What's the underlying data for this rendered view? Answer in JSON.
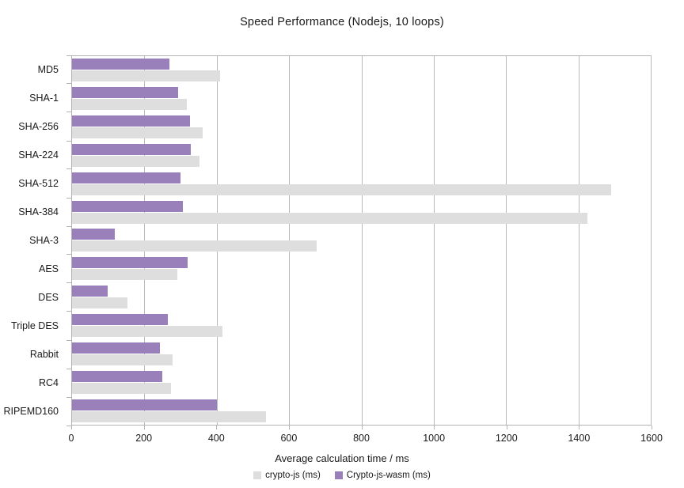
{
  "chart_data": {
    "type": "bar",
    "orientation": "horizontal",
    "title": "Speed Performance (Nodejs, 10 loops)",
    "xlabel": "Average calculation time / ms",
    "xlim": [
      0,
      1600
    ],
    "xticks": [
      0,
      200,
      400,
      600,
      800,
      1000,
      1200,
      1400,
      1600
    ],
    "grid": true,
    "legend_position": "bottom",
    "categories": [
      "MD5",
      "SHA-1",
      "SHA-256",
      "SHA-224",
      "SHA-512",
      "SHA-384",
      "SHA-3",
      "AES",
      "DES",
      "Triple DES",
      "Rabbit",
      "RC4",
      "RIPEMD160"
    ],
    "series": [
      {
        "name": "crypto-js (ms)",
        "color": "#dedede",
        "values": [
          410,
          318,
          362,
          353,
          1490,
          1425,
          677,
          292,
          154,
          416,
          277,
          274,
          536
        ]
      },
      {
        "name": "Crypto-js-wasm (ms)",
        "color": "#9a80bb",
        "values": [
          269,
          294,
          327,
          329,
          299,
          306,
          118,
          319,
          98,
          265,
          242,
          249,
          401
        ]
      }
    ]
  }
}
